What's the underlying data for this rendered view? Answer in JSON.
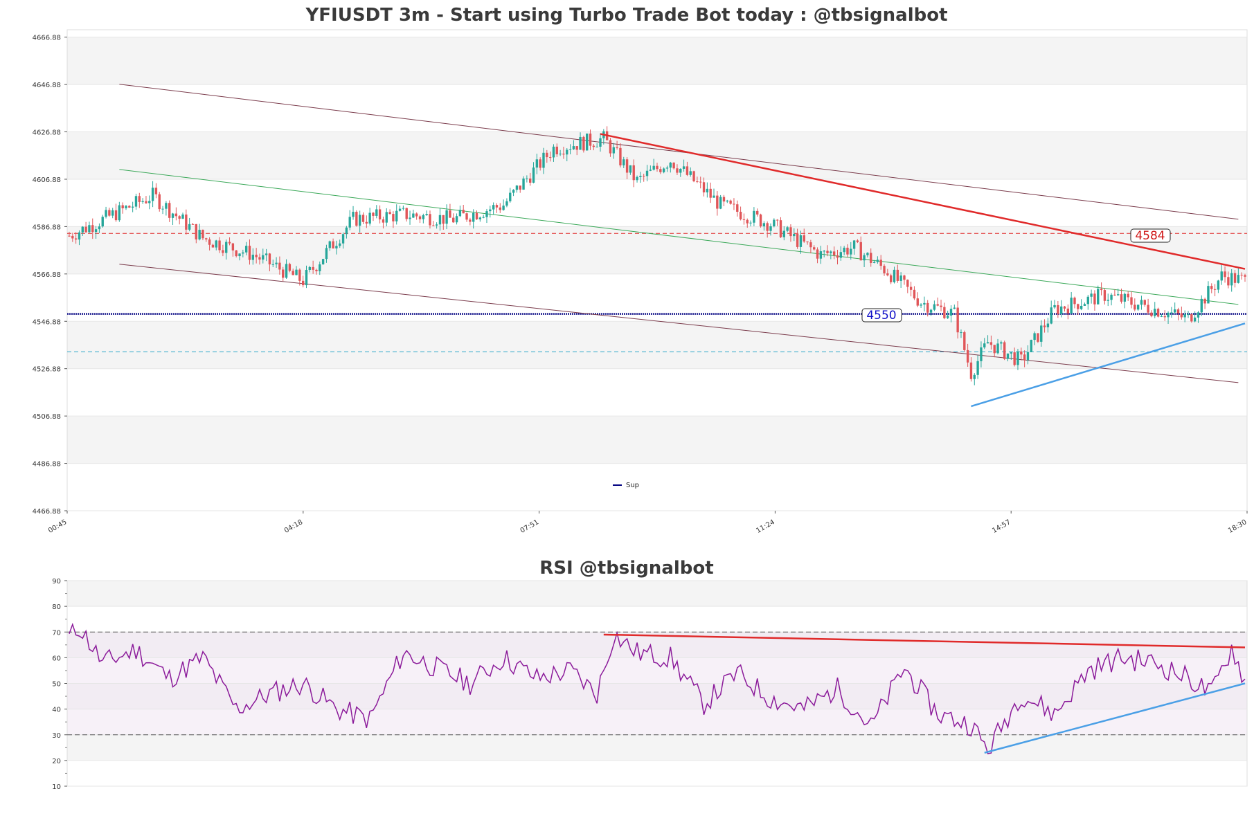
{
  "colors": {
    "up": "#26a69a",
    "down": "#e05558",
    "band": "#f4f4f4",
    "resistance": "#e02a2a",
    "support": "#000080",
    "trend_up": "#4a9fe6",
    "channel": "#7a3b4b",
    "mid": "#3aa858",
    "rsi_line": "#8b1a9a",
    "cyan_dash": "#2aa6c8"
  },
  "chart_data": [
    {
      "type": "candlestick",
      "title": "YFIUSDT 3m - Start using Turbo Trade Bot today : @tbsignalbot",
      "y_ticks": [
        "4466.88",
        "4486.88",
        "4506.88",
        "4526.88",
        "4546.88",
        "4566.88",
        "4586.88",
        "4606.88",
        "4626.88",
        "4646.88",
        "4666.88"
      ],
      "ylim": [
        4466.88,
        4670
      ],
      "x_ticks": [
        "00:45",
        "04:18",
        "07:51",
        "11:24",
        "14:57",
        "18:30"
      ],
      "legend": [
        {
          "label": "Sup",
          "color": "#000080"
        }
      ],
      "resistance_label": "4584",
      "support_label": "4550",
      "levels": {
        "resistance": 4584,
        "support": 4550,
        "cyan": 4534
      },
      "key_points": [
        {
          "i": 0,
          "p": 4583
        },
        {
          "i": 25,
          "p": 4600
        },
        {
          "i": 40,
          "p": 4582
        },
        {
          "i": 55,
          "p": 4575
        },
        {
          "i": 70,
          "p": 4564
        },
        {
          "i": 85,
          "p": 4590
        },
        {
          "i": 100,
          "p": 4592
        },
        {
          "i": 115,
          "p": 4590
        },
        {
          "i": 130,
          "p": 4596
        },
        {
          "i": 145,
          "p": 4620
        },
        {
          "i": 160,
          "p": 4624
        },
        {
          "i": 170,
          "p": 4606
        },
        {
          "i": 180,
          "p": 4615
        },
        {
          "i": 195,
          "p": 4596
        },
        {
          "i": 210,
          "p": 4588
        },
        {
          "i": 225,
          "p": 4575
        },
        {
          "i": 235,
          "p": 4578
        },
        {
          "i": 245,
          "p": 4568
        },
        {
          "i": 255,
          "p": 4555
        },
        {
          "i": 265,
          "p": 4550
        },
        {
          "i": 270,
          "p": 4525
        },
        {
          "i": 275,
          "p": 4538
        },
        {
          "i": 285,
          "p": 4530
        },
        {
          "i": 295,
          "p": 4552
        },
        {
          "i": 310,
          "p": 4558
        },
        {
          "i": 325,
          "p": 4552
        },
        {
          "i": 335,
          "p": 4548
        },
        {
          "i": 345,
          "p": 4566
        },
        {
          "i": 352,
          "p": 4564
        }
      ],
      "candles_count": 353,
      "resistance_trend": [
        {
          "i": 159,
          "p": 4626
        },
        {
          "i": 352,
          "p": 4569
        }
      ],
      "support_trend": [
        {
          "i": 270,
          "p": 4511
        },
        {
          "i": 352,
          "p": 4546
        }
      ],
      "channel_upper": [
        {
          "i": 15,
          "p": 4647
        },
        {
          "i": 350,
          "p": 4590
        }
      ],
      "channel_mid": [
        {
          "i": 15,
          "p": 4611
        },
        {
          "i": 350,
          "p": 4554
        }
      ],
      "channel_lower": [
        {
          "i": 15,
          "p": 4571
        },
        {
          "i": 350,
          "p": 4521
        }
      ]
    },
    {
      "type": "line",
      "title": "RSI @tbsignalbot",
      "y_ticks": [
        "10",
        "20",
        "30",
        "40",
        "50",
        "60",
        "70",
        "80",
        "90"
      ],
      "ylim": [
        10,
        90
      ],
      "bands": [
        70,
        30
      ],
      "key_points": [
        {
          "i": 0,
          "v": 68
        },
        {
          "i": 3,
          "v": 72
        },
        {
          "i": 10,
          "v": 58
        },
        {
          "i": 20,
          "v": 63
        },
        {
          "i": 30,
          "v": 52
        },
        {
          "i": 40,
          "v": 60
        },
        {
          "i": 50,
          "v": 40
        },
        {
          "i": 60,
          "v": 46
        },
        {
          "i": 70,
          "v": 50
        },
        {
          "i": 80,
          "v": 40
        },
        {
          "i": 90,
          "v": 36
        },
        {
          "i": 100,
          "v": 62
        },
        {
          "i": 110,
          "v": 56
        },
        {
          "i": 120,
          "v": 50
        },
        {
          "i": 130,
          "v": 60
        },
        {
          "i": 140,
          "v": 52
        },
        {
          "i": 150,
          "v": 55
        },
        {
          "i": 158,
          "v": 46
        },
        {
          "i": 163,
          "v": 69
        },
        {
          "i": 170,
          "v": 62
        },
        {
          "i": 180,
          "v": 60
        },
        {
          "i": 190,
          "v": 42
        },
        {
          "i": 200,
          "v": 54
        },
        {
          "i": 210,
          "v": 44
        },
        {
          "i": 220,
          "v": 40
        },
        {
          "i": 230,
          "v": 48
        },
        {
          "i": 240,
          "v": 33
        },
        {
          "i": 250,
          "v": 56
        },
        {
          "i": 260,
          "v": 38
        },
        {
          "i": 270,
          "v": 34
        },
        {
          "i": 275,
          "v": 24
        },
        {
          "i": 285,
          "v": 46
        },
        {
          "i": 295,
          "v": 38
        },
        {
          "i": 305,
          "v": 55
        },
        {
          "i": 315,
          "v": 60
        },
        {
          "i": 325,
          "v": 58
        },
        {
          "i": 335,
          "v": 52
        },
        {
          "i": 342,
          "v": 46
        },
        {
          "i": 348,
          "v": 64
        },
        {
          "i": 352,
          "v": 51
        }
      ],
      "resistance_trend": [
        {
          "i": 160,
          "v": 69
        },
        {
          "i": 352,
          "v": 64
        }
      ],
      "support_trend": [
        {
          "i": 274,
          "v": 23
        },
        {
          "i": 352,
          "v": 50
        }
      ]
    }
  ]
}
